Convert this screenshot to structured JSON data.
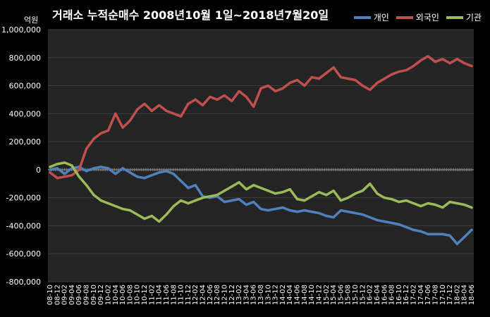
{
  "title": "거래소 누적순매수 2008년10월 1일~2018년7월20일",
  "unit_label": "억원",
  "legend": [
    {
      "name": "개인",
      "color": "#4F81BD"
    },
    {
      "name": "외국인",
      "color": "#C0504D"
    },
    {
      "name": "기관",
      "color": "#9BBB59"
    }
  ],
  "chart_data": {
    "type": "line",
    "title": "거래소 누적순매수 2008년10월 1일~2018년7월20일",
    "ylim": [
      -800000,
      1000000
    ],
    "yticks": [
      1000000,
      800000,
      600000,
      400000,
      200000,
      0,
      -200000,
      -400000,
      -600000,
      -800000
    ],
    "ytick_labels": [
      "1,000,000",
      "800,000",
      "600,000",
      "400,000",
      "200,000",
      "0",
      "-200,000",
      "-400,000",
      "-600,000",
      "-800,000"
    ],
    "xticks": [
      "08-10",
      "08-12",
      "09-02",
      "09-04",
      "09-06",
      "09-08",
      "09-10",
      "09-12",
      "10-02",
      "10-04",
      "10-06",
      "10-08",
      "10-10",
      "10-12",
      "11-02",
      "11-04",
      "11-06",
      "11-08",
      "11-10",
      "11-12",
      "12-02",
      "12-04",
      "12-06",
      "12-08",
      "12-10",
      "12-12",
      "13-02",
      "13-04",
      "13-06",
      "13-08",
      "13-10",
      "13-12",
      "14-02",
      "14-04",
      "14-06",
      "14-08",
      "14-10",
      "14-12",
      "15-02",
      "15-04",
      "15-06",
      "15-08",
      "15-10",
      "15-12",
      "16-02",
      "16-04",
      "16-06",
      "16-08",
      "16-10",
      "16-12",
      "17-02",
      "17-04",
      "17-06",
      "17-08",
      "17-10",
      "17-12",
      "18-02",
      "18-04",
      "18-06"
    ],
    "grid": true,
    "legend_position": "top-right",
    "series": [
      {
        "name": "개인",
        "color": "#4F81BD",
        "values": [
          0,
          10000,
          -30000,
          10000,
          20000,
          -10000,
          10000,
          20000,
          10000,
          -30000,
          10000,
          -20000,
          -50000,
          -60000,
          -40000,
          -20000,
          -10000,
          -30000,
          -80000,
          -130000,
          -110000,
          -190000,
          -200000,
          -190000,
          -230000,
          -220000,
          -210000,
          -250000,
          -230000,
          -280000,
          -290000,
          -280000,
          -270000,
          -290000,
          -300000,
          -290000,
          -300000,
          -310000,
          -330000,
          -340000,
          -290000,
          -300000,
          -310000,
          -320000,
          -340000,
          -360000,
          -370000,
          -380000,
          -390000,
          -410000,
          -430000,
          -440000,
          -460000,
          -460000,
          -460000,
          -470000,
          -530000,
          -480000,
          -430000
        ]
      },
      {
        "name": "외국인",
        "color": "#C0504D",
        "values": [
          -20000,
          -60000,
          -50000,
          -40000,
          0,
          150000,
          220000,
          260000,
          280000,
          400000,
          300000,
          350000,
          430000,
          470000,
          420000,
          460000,
          420000,
          400000,
          380000,
          470000,
          500000,
          460000,
          520000,
          500000,
          530000,
          490000,
          560000,
          520000,
          450000,
          580000,
          600000,
          560000,
          580000,
          620000,
          640000,
          600000,
          660000,
          650000,
          690000,
          730000,
          660000,
          650000,
          640000,
          600000,
          570000,
          620000,
          650000,
          680000,
          700000,
          710000,
          740000,
          780000,
          810000,
          770000,
          790000,
          760000,
          790000,
          760000,
          740000
        ]
      },
      {
        "name": "기관",
        "color": "#9BBB59",
        "values": [
          20000,
          40000,
          50000,
          30000,
          -50000,
          -110000,
          -180000,
          -220000,
          -240000,
          -260000,
          -280000,
          -290000,
          -320000,
          -350000,
          -330000,
          -370000,
          -320000,
          -260000,
          -220000,
          -240000,
          -220000,
          -200000,
          -190000,
          -180000,
          -150000,
          -120000,
          -90000,
          -140000,
          -110000,
          -130000,
          -150000,
          -170000,
          -160000,
          -140000,
          -210000,
          -220000,
          -190000,
          -160000,
          -180000,
          -150000,
          -220000,
          -200000,
          -170000,
          -150000,
          -100000,
          -170000,
          -200000,
          -210000,
          -230000,
          -220000,
          -240000,
          -260000,
          -240000,
          -250000,
          -270000,
          -230000,
          -240000,
          -250000,
          -270000
        ]
      }
    ]
  }
}
